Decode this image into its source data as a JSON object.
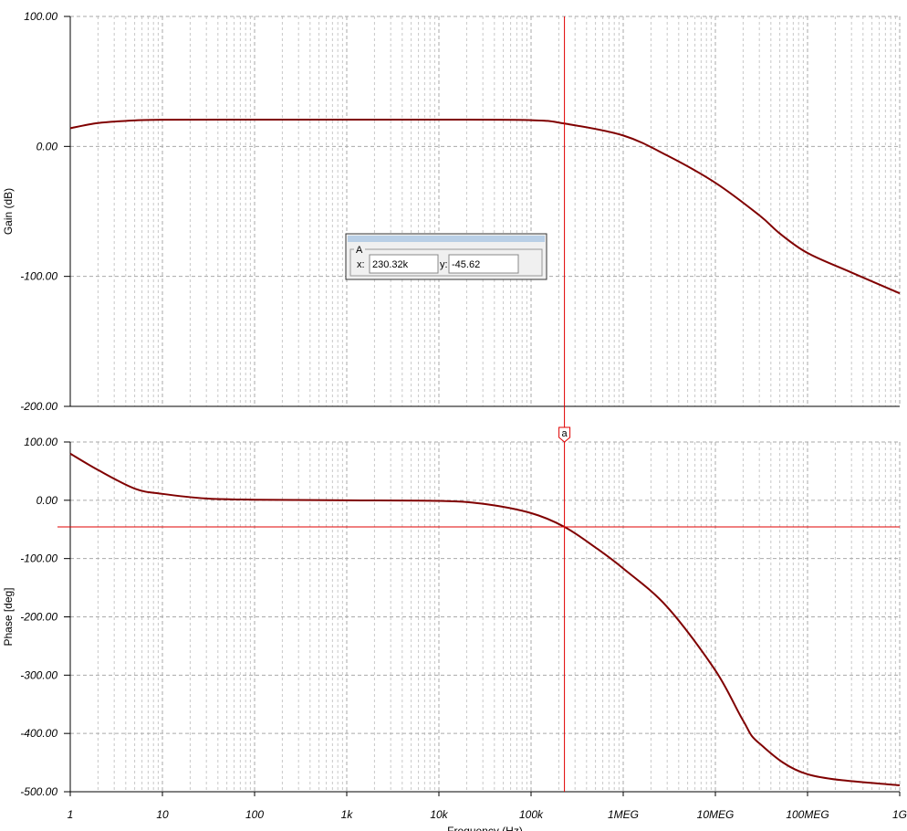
{
  "chart_data": [
    {
      "type": "line",
      "ylabel": "Gain (dB)",
      "xscale": "log",
      "xlim": [
        1,
        1000000000
      ],
      "ylim": [
        -200,
        100
      ],
      "yticks": [
        {
          "value": 100,
          "label": "100.00"
        },
        {
          "value": 0,
          "label": "0.00"
        },
        {
          "value": -100,
          "label": "-100.00"
        },
        {
          "value": -200,
          "label": "-200.00"
        }
      ],
      "grid": true,
      "color": "#800000",
      "x": [
        1,
        2,
        5,
        10,
        100,
        1000,
        10000,
        100000,
        230320,
        1000000,
        3000000,
        10000000,
        30000000,
        50000000,
        100000000,
        300000000,
        1000000000
      ],
      "values": [
        14,
        18,
        20,
        20.5,
        20.6,
        20.6,
        20.6,
        20.2,
        17.6,
        8.4,
        -7,
        -28,
        -53,
        -67,
        -82,
        -97,
        -113
      ]
    },
    {
      "type": "line",
      "ylabel": "Phase [deg]",
      "xlabel": "Frequency (Hz)",
      "xscale": "log",
      "xlim": [
        1,
        1000000000
      ],
      "ylim": [
        -500,
        100
      ],
      "yticks": [
        {
          "value": 100,
          "label": "100.00"
        },
        {
          "value": 0,
          "label": "0.00"
        },
        {
          "value": -100,
          "label": "-100.00"
        },
        {
          "value": -200,
          "label": "-200.00"
        },
        {
          "value": -300,
          "label": "-300.00"
        },
        {
          "value": -400,
          "label": "-400.00"
        },
        {
          "value": -500,
          "label": "-500.00"
        }
      ],
      "xticks": [
        1,
        10,
        100,
        {
          "value": 1000,
          "label": "1k"
        },
        {
          "value": 10000,
          "label": "10k"
        },
        {
          "value": 100000,
          "label": "100k"
        },
        {
          "value": 1000000,
          "label": "1MEG"
        },
        {
          "value": 10000000,
          "label": "10MEG"
        },
        {
          "value": 100000000,
          "label": "100MEG"
        },
        {
          "value": 1000000000,
          "label": "1G"
        }
      ],
      "grid": true,
      "color": "#800000",
      "x": [
        1,
        2,
        5,
        10,
        30,
        100,
        1000,
        10000,
        30000,
        100000,
        230320,
        500000,
        1000000,
        3000000,
        10000000,
        20000000,
        30000000,
        100000000,
        1000000000
      ],
      "values": [
        80,
        52,
        20,
        11,
        3,
        1,
        0,
        -1,
        -6,
        -22,
        -45.62,
        -81,
        -117,
        -183,
        -292,
        -378,
        -417,
        -470,
        -489
      ]
    }
  ],
  "cursor": {
    "title": "A",
    "x_label": "x:",
    "y_label": "y:",
    "x": {
      "value": 230320,
      "label": "230.32k"
    },
    "y": -45.62,
    "marker": "a",
    "color": "#e00000"
  }
}
